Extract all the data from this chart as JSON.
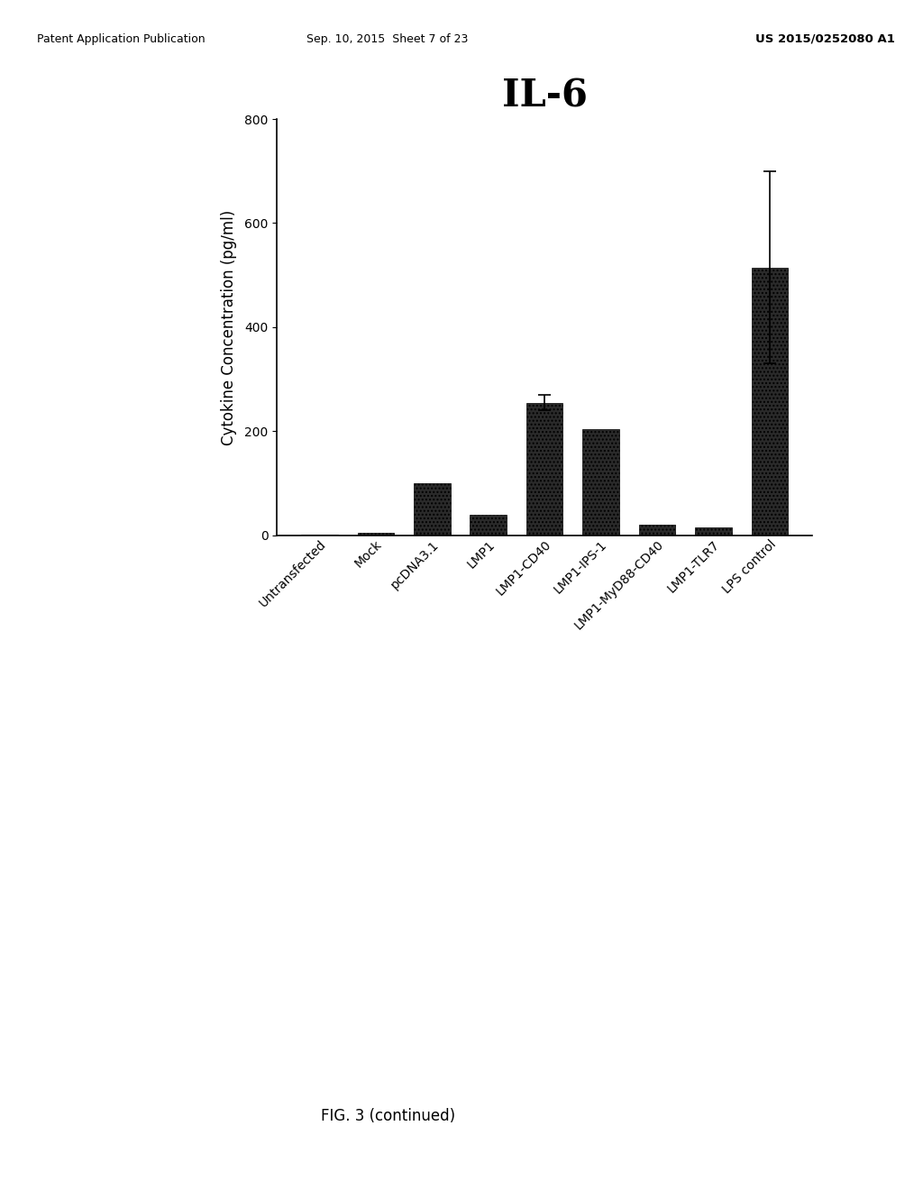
{
  "title": "IL-6",
  "ylabel": "Cytokine Concentration (pg/ml)",
  "categories": [
    "Untransfected",
    "Mock",
    "pcDNA3.1",
    "LMP1",
    "LMP1-CD40",
    "LMP1-IPS-1",
    "LMP1-MyD88-CD40",
    "LMP1-TLR7",
    "LPS control"
  ],
  "values": [
    2,
    5,
    100,
    40,
    255,
    205,
    20,
    15,
    515
  ],
  "errors": [
    0,
    0,
    0,
    0,
    15,
    0,
    0,
    0,
    185
  ],
  "bar_color": "#2a2a2a",
  "background_color": "#f0f0f0",
  "ylim": [
    0,
    800
  ],
  "yticks": [
    0,
    200,
    400,
    600,
    800
  ],
  "title_fontsize": 30,
  "ylabel_fontsize": 12,
  "tick_fontsize": 10,
  "xtick_fontsize": 10,
  "figcaption": "FIG. 3 (continued)",
  "header_left": "Patent Application Publication",
  "header_center": "Sep. 10, 2015  Sheet 7 of 23",
  "header_right": "US 2015/0252080 A1"
}
